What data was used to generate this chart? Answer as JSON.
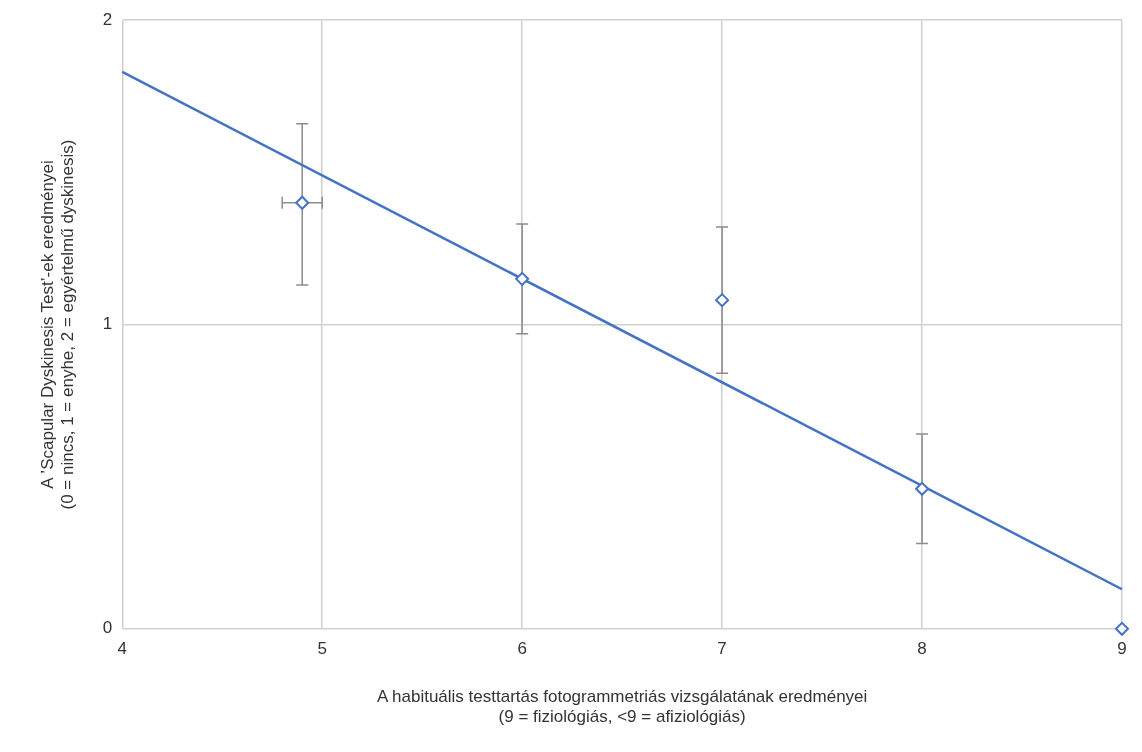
{
  "chart_data": {
    "type": "scatter",
    "xlabel": "A habituális testtartás fotogrammetriás vizsgálatának eredményei\n(9 = fiziológiás, <9 = afiziológiás)",
    "ylabel": "A ’Scapular Dyskinesis Test’-ek eredményei\n(0 = nincs, 1 = enyhe, 2 = egyértelmű dyskinesis)",
    "xlim": [
      4,
      9
    ],
    "xticks": [
      4,
      5,
      6,
      7,
      8,
      9
    ],
    "ylim": [
      0,
      2
    ],
    "yticks": [
      0,
      1,
      2
    ],
    "grid": true,
    "legend": false,
    "marker": "diamond",
    "series": [
      {
        "type": "scatter",
        "color": "#4472c4",
        "x": [
          4.9,
          6,
          7,
          8,
          9
        ],
        "values": [
          1.4,
          1.15,
          1.08,
          0.46,
          0
        ],
        "errors": [
          [
            1.13,
            1.66
          ],
          [
            0.97,
            1.33
          ],
          [
            0.84,
            1.32
          ],
          [
            0.28,
            0.64
          ],
          null
        ],
        "xerrors": [
          [
            4.8,
            5.0
          ],
          null,
          null,
          null,
          null
        ]
      },
      {
        "type": "line",
        "color": "#4472c4",
        "marker": "none",
        "x": [
          4,
          9
        ],
        "values": [
          1.83,
          0.13
        ]
      }
    ]
  }
}
